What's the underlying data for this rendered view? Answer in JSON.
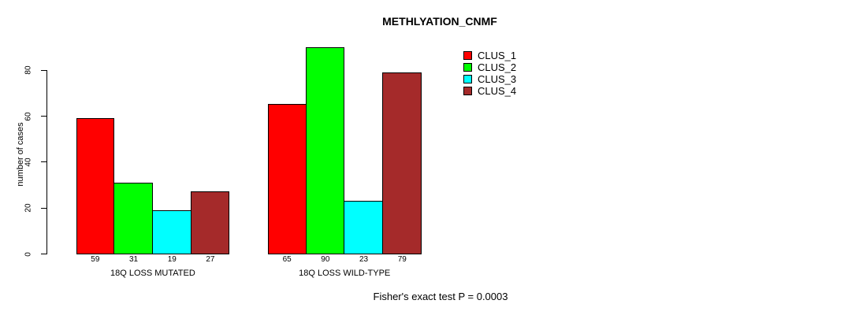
{
  "chart_data": {
    "type": "bar",
    "title": "METHLYATION_CNMF",
    "ylabel": "number of cases",
    "xlabel": "",
    "caption": "Fisher's exact test P = 0.0003",
    "categories": [
      "18Q LOSS MUTATED",
      "18Q LOSS WILD-TYPE"
    ],
    "series": [
      {
        "name": "CLUS_1",
        "color": "#ff0000",
        "values": [
          59,
          65
        ]
      },
      {
        "name": "CLUS_2",
        "color": "#00ff00",
        "values": [
          31,
          90
        ]
      },
      {
        "name": "CLUS_3",
        "color": "#00ffff",
        "values": [
          19,
          23
        ]
      },
      {
        "name": "CLUS_4",
        "color": "#a52a2a",
        "values": [
          27,
          79
        ]
      }
    ],
    "yticks": [
      0,
      20,
      40,
      60,
      80
    ],
    "ylim": [
      0,
      90
    ],
    "bar_outline_color": "#000000",
    "value_labels_under_bars": true,
    "grid": false,
    "legend_position": "top-right",
    "legend_entries": [
      "CLUS_1",
      "CLUS_2",
      "CLUS_3",
      "CLUS_4"
    ]
  }
}
